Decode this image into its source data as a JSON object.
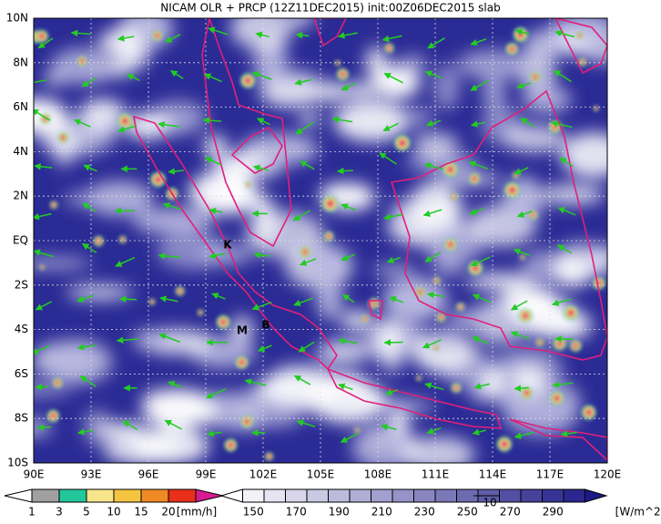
{
  "title": "NICAM OLR + PRCP (12Z11DEC2015) init:00Z06DEC2015 slab",
  "lon_labels": [
    "90E",
    "93E",
    "96E",
    "99E",
    "102E",
    "105E",
    "108E",
    "111E",
    "114E",
    "117E",
    "120E"
  ],
  "lat_labels": [
    "10N",
    "8N",
    "6N",
    "4N",
    "2N",
    "EQ",
    "2S",
    "4S",
    "6S",
    "8S",
    "10S"
  ],
  "markers": [
    "K",
    "M",
    "B"
  ],
  "prcp_legend": {
    "levels": [
      "1",
      "3",
      "5",
      "10",
      "15",
      "20"
    ],
    "unit": "[mm/h]"
  },
  "olr_legend": {
    "levels": [
      "150",
      "170",
      "190",
      "210",
      "230",
      "250",
      "270",
      "290"
    ],
    "unit": "[W/m^2]"
  },
  "vector_ref": "10"
}
